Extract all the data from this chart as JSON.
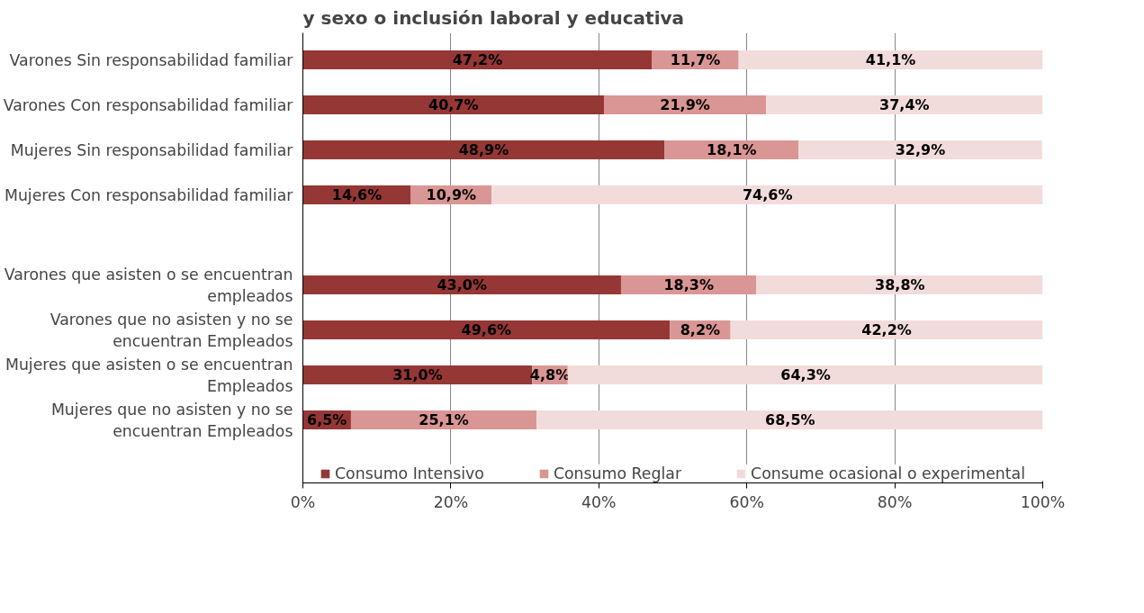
{
  "chart_data": {
    "type": "bar",
    "orientation": "horizontal",
    "stacked": true,
    "title": "y sexo o inclusión laboral y educativa",
    "categories": [
      "Varones Sin responsabilidad familiar",
      "Varones Con responsabilidad familiar",
      "Mujeres Sin responsabilidad familiar",
      "Mujeres Con responsabilidad familiar",
      null,
      "Varones que asisten o se encuentran\nempleados",
      "Varones que no asisten y no se\nencuentran Empleados",
      "Mujeres que asisten o se encuentran\nEmpleados",
      "Mujeres que no asisten y no se\nencuentran Empleados"
    ],
    "series": [
      {
        "name": "Consumo Intensivo",
        "color": "#953735",
        "values": [
          47.2,
          40.7,
          48.9,
          14.6,
          null,
          43.0,
          49.6,
          31.0,
          6.5
        ],
        "value_labels": [
          "47,2%",
          "40,7%",
          "48,9%",
          "14,6%",
          null,
          "43,0%",
          "49,6%",
          "31,0%",
          "6,5%"
        ]
      },
      {
        "name": "Consumo Reglar",
        "color": "#d99694",
        "values": [
          11.7,
          21.9,
          18.1,
          10.9,
          null,
          18.3,
          8.2,
          4.8,
          25.1
        ],
        "value_labels": [
          "11,7%",
          "21,9%",
          "18,1%",
          "10,9%",
          null,
          "18,3%",
          "8,2%",
          "4,8%",
          "25,1%"
        ]
      },
      {
        "name": "Consume ocasional o experimental",
        "color": "#f2dcdb",
        "values": [
          41.1,
          37.4,
          32.9,
          74.6,
          null,
          38.8,
          42.2,
          64.3,
          68.5
        ],
        "value_labels": [
          "41,1%",
          "37,4%",
          "32,9%",
          "74,6%",
          null,
          "38,8%",
          "42,2%",
          "64,3%",
          "68,5%"
        ]
      }
    ],
    "xlim": [
      0,
      100
    ],
    "xticks": [
      {
        "value": 0,
        "label": "0%"
      },
      {
        "value": 20,
        "label": "20%"
      },
      {
        "value": 40,
        "label": "40%"
      },
      {
        "value": 60,
        "label": "60%"
      },
      {
        "value": 80,
        "label": "80%"
      },
      {
        "value": 100,
        "label": "100%"
      }
    ],
    "grid": "x",
    "legend": "bottom"
  }
}
